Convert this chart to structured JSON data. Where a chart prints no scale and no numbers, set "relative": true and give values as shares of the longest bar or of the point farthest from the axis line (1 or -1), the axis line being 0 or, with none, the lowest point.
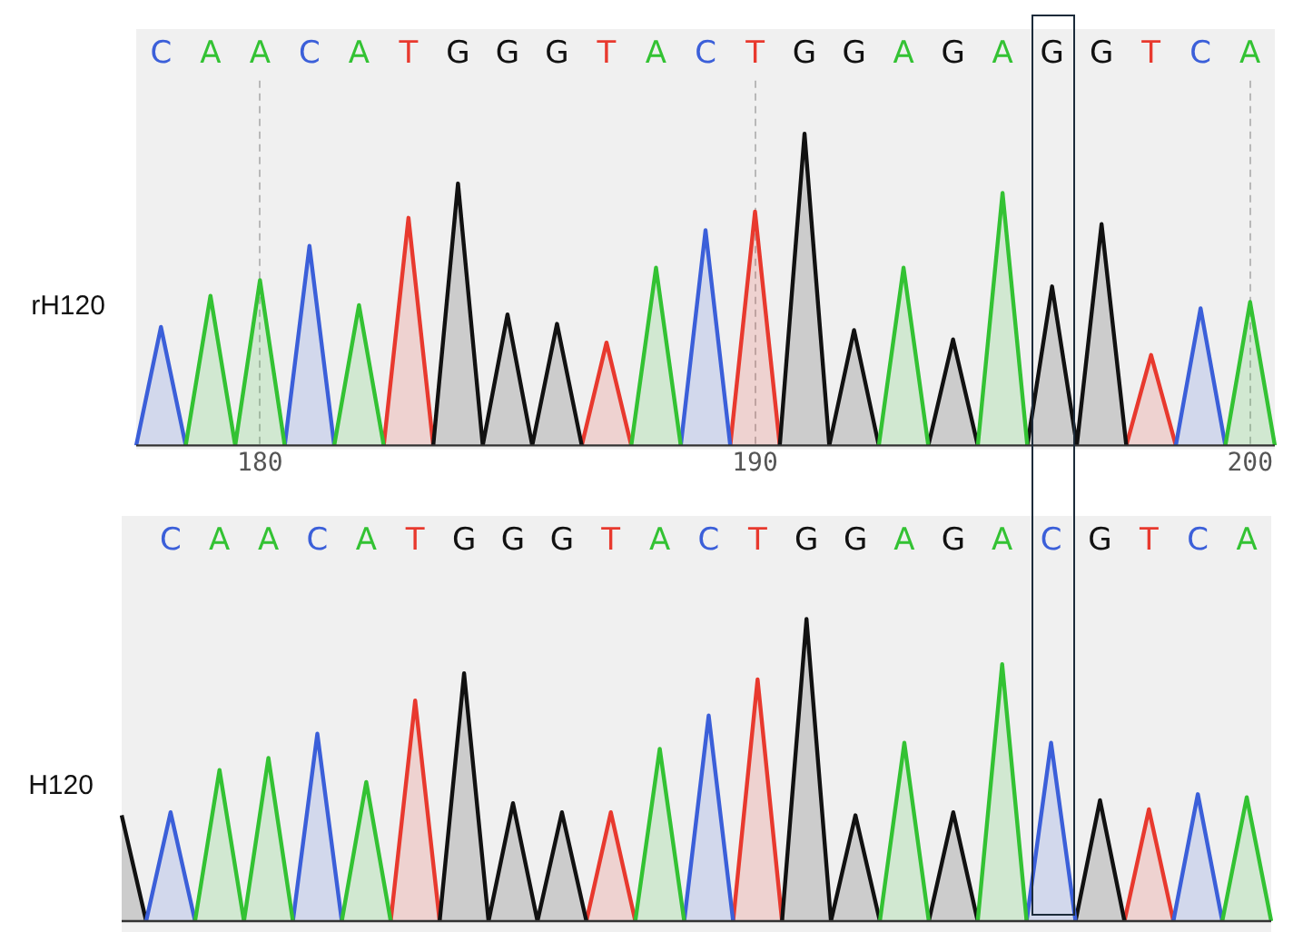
{
  "chart_data": [
    {
      "type": "area",
      "relative": true,
      "ylabel": "rH120",
      "x2lim": [
        177.5,
        200.5
      ],
      "x2ticks": [
        180,
        190,
        200
      ],
      "grid": "x",
      "categories": [
        null,
        "C",
        null,
        "A",
        null,
        "A",
        null,
        "C",
        null,
        "A",
        null,
        "T",
        null,
        "G",
        null,
        "G",
        null,
        "G",
        null,
        "T",
        null,
        "A",
        null,
        "C",
        null,
        "T",
        null,
        "G",
        null,
        "G",
        null,
        "A",
        null,
        "G",
        null,
        "A",
        null,
        "G",
        null,
        "G",
        null,
        "T",
        null,
        "C",
        null,
        "A",
        null
      ],
      "series": [
        {
          "color": "#33c233",
          "values": [
            null,
            null,
            0,
            0.48,
            0,
            0.53,
            0,
            null,
            0,
            0.45,
            0,
            null,
            null,
            null,
            null,
            null,
            null,
            null,
            null,
            null,
            0,
            0.57,
            0,
            null,
            null,
            null,
            null,
            null,
            null,
            null,
            0,
            0.57,
            0,
            null,
            0,
            0.81,
            0,
            null,
            null,
            null,
            null,
            null,
            null,
            null,
            0,
            0.46,
            0
          ]
        },
        {
          "color": "#3b5fd9",
          "values": [
            0,
            0.38,
            0,
            null,
            null,
            null,
            0,
            0.64,
            0,
            null,
            null,
            null,
            null,
            null,
            null,
            null,
            null,
            null,
            null,
            null,
            null,
            null,
            0,
            0.69,
            0,
            null,
            null,
            null,
            null,
            null,
            null,
            null,
            null,
            null,
            null,
            null,
            null,
            null,
            null,
            null,
            null,
            null,
            0,
            0.44,
            0,
            null,
            null
          ]
        },
        {
          "color": "#111111",
          "values": [
            null,
            null,
            null,
            null,
            null,
            null,
            null,
            null,
            null,
            null,
            null,
            null,
            0,
            0.84,
            0,
            0.42,
            0,
            0.39,
            0,
            null,
            null,
            null,
            null,
            null,
            null,
            null,
            0,
            1,
            0,
            0.37,
            0,
            null,
            0,
            0.34,
            0,
            null,
            0,
            0.51,
            0,
            0.71,
            0,
            null,
            null,
            null,
            null,
            null,
            null
          ]
        },
        {
          "color": "#e8392e",
          "values": [
            null,
            null,
            null,
            null,
            null,
            null,
            null,
            null,
            null,
            null,
            0,
            0.73,
            0,
            null,
            null,
            null,
            null,
            null,
            0,
            0.33,
            0,
            null,
            null,
            null,
            0,
            0.75,
            0,
            null,
            null,
            null,
            null,
            null,
            null,
            null,
            null,
            null,
            null,
            null,
            null,
            null,
            0,
            0.29,
            0,
            null,
            null,
            null,
            null
          ]
        }
      ]
    },
    {
      "type": "area",
      "relative": true,
      "ylabel": "H120",
      "categories": [
        null,
        null,
        "C",
        null,
        "A",
        null,
        "A",
        null,
        "C",
        null,
        "A",
        null,
        "T",
        null,
        "G",
        null,
        "G",
        null,
        "G",
        null,
        "T",
        null,
        "A",
        null,
        "C",
        null,
        "T",
        null,
        "G",
        null,
        "G",
        null,
        "A",
        null,
        "G",
        null,
        "A",
        null,
        "C",
        null,
        "G",
        null,
        "T",
        null,
        "C",
        null,
        "A",
        null
      ],
      "series": [
        {
          "color": "#33c233",
          "values": [
            null,
            null,
            null,
            0,
            0.5,
            0,
            0.54,
            0,
            null,
            0,
            0.46,
            0,
            null,
            null,
            null,
            null,
            null,
            null,
            null,
            null,
            null,
            0,
            0.57,
            0,
            null,
            null,
            null,
            null,
            null,
            null,
            null,
            0,
            0.59,
            0,
            null,
            0,
            0.85,
            0,
            null,
            null,
            null,
            null,
            null,
            null,
            null,
            0,
            0.41,
            0
          ]
        },
        {
          "color": "#3b5fd9",
          "values": [
            null,
            0,
            0.36,
            0,
            null,
            null,
            null,
            0,
            0.62,
            0,
            null,
            null,
            null,
            null,
            null,
            null,
            null,
            null,
            null,
            null,
            null,
            null,
            null,
            0,
            0.68,
            0,
            null,
            null,
            null,
            null,
            null,
            null,
            null,
            null,
            null,
            null,
            null,
            0,
            0.59,
            0,
            null,
            null,
            null,
            0,
            0.42,
            0,
            null,
            null
          ]
        },
        {
          "color": "#111111",
          "values": [
            0.35,
            0,
            null,
            null,
            null,
            null,
            null,
            null,
            null,
            null,
            null,
            null,
            null,
            0,
            0.82,
            0,
            0.39,
            0,
            0.36,
            0,
            null,
            null,
            null,
            null,
            null,
            null,
            null,
            0,
            1,
            0,
            0.35,
            0,
            null,
            0,
            0.36,
            0,
            null,
            null,
            null,
            0,
            0.4,
            0,
            null,
            null,
            null,
            null,
            null,
            null
          ]
        },
        {
          "color": "#e8392e",
          "values": [
            null,
            null,
            null,
            null,
            null,
            null,
            null,
            null,
            null,
            null,
            null,
            0,
            0.73,
            0,
            null,
            null,
            null,
            null,
            null,
            0,
            0.36,
            0,
            null,
            null,
            null,
            0,
            0.8,
            0,
            null,
            null,
            null,
            null,
            null,
            null,
            null,
            null,
            null,
            null,
            null,
            null,
            null,
            0,
            0.37,
            0,
            null,
            null,
            null,
            null
          ]
        }
      ]
    }
  ]
}
